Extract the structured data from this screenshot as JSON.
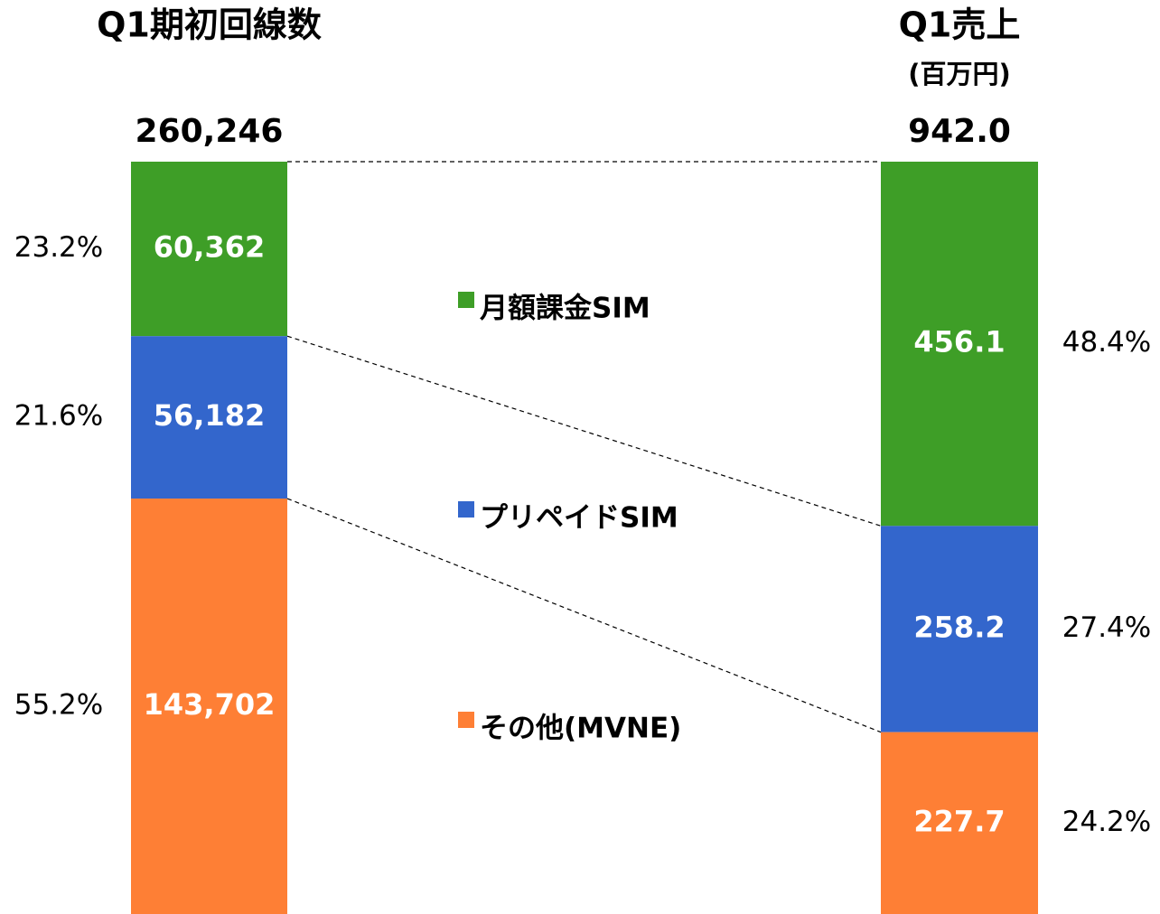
{
  "chart_data": {
    "type": "bar",
    "stacked": true,
    "normalized": true,
    "categories": [
      "Q1期初回線数",
      "Q1売上"
    ],
    "category_subtitles": [
      null,
      "(百万円)"
    ],
    "totals": [
      260246,
      942.0
    ],
    "total_labels": [
      "260,246",
      "942.0"
    ],
    "series": [
      {
        "name": "月額課金SIM",
        "color": "#3e9e27",
        "values": [
          60362,
          456.1
        ],
        "value_labels": [
          "60,362",
          "456.1"
        ],
        "shares": [
          23.2,
          48.4
        ],
        "share_labels": [
          "23.2%",
          "48.4%"
        ]
      },
      {
        "name": "プリペイドSIM",
        "color": "#3366cc",
        "values": [
          56182,
          258.2
        ],
        "value_labels": [
          "56,182",
          "258.2"
        ],
        "shares": [
          21.6,
          27.4
        ],
        "share_labels": [
          "21.6%",
          "27.4%"
        ]
      },
      {
        "name": "その他(MVNE)",
        "color": "#fe7f35",
        "values": [
          143702,
          227.7
        ],
        "value_labels": [
          "143,702",
          "227.7"
        ],
        "shares": [
          55.2,
          24.2
        ],
        "share_labels": [
          "55.2%",
          "24.2%"
        ]
      }
    ]
  }
}
